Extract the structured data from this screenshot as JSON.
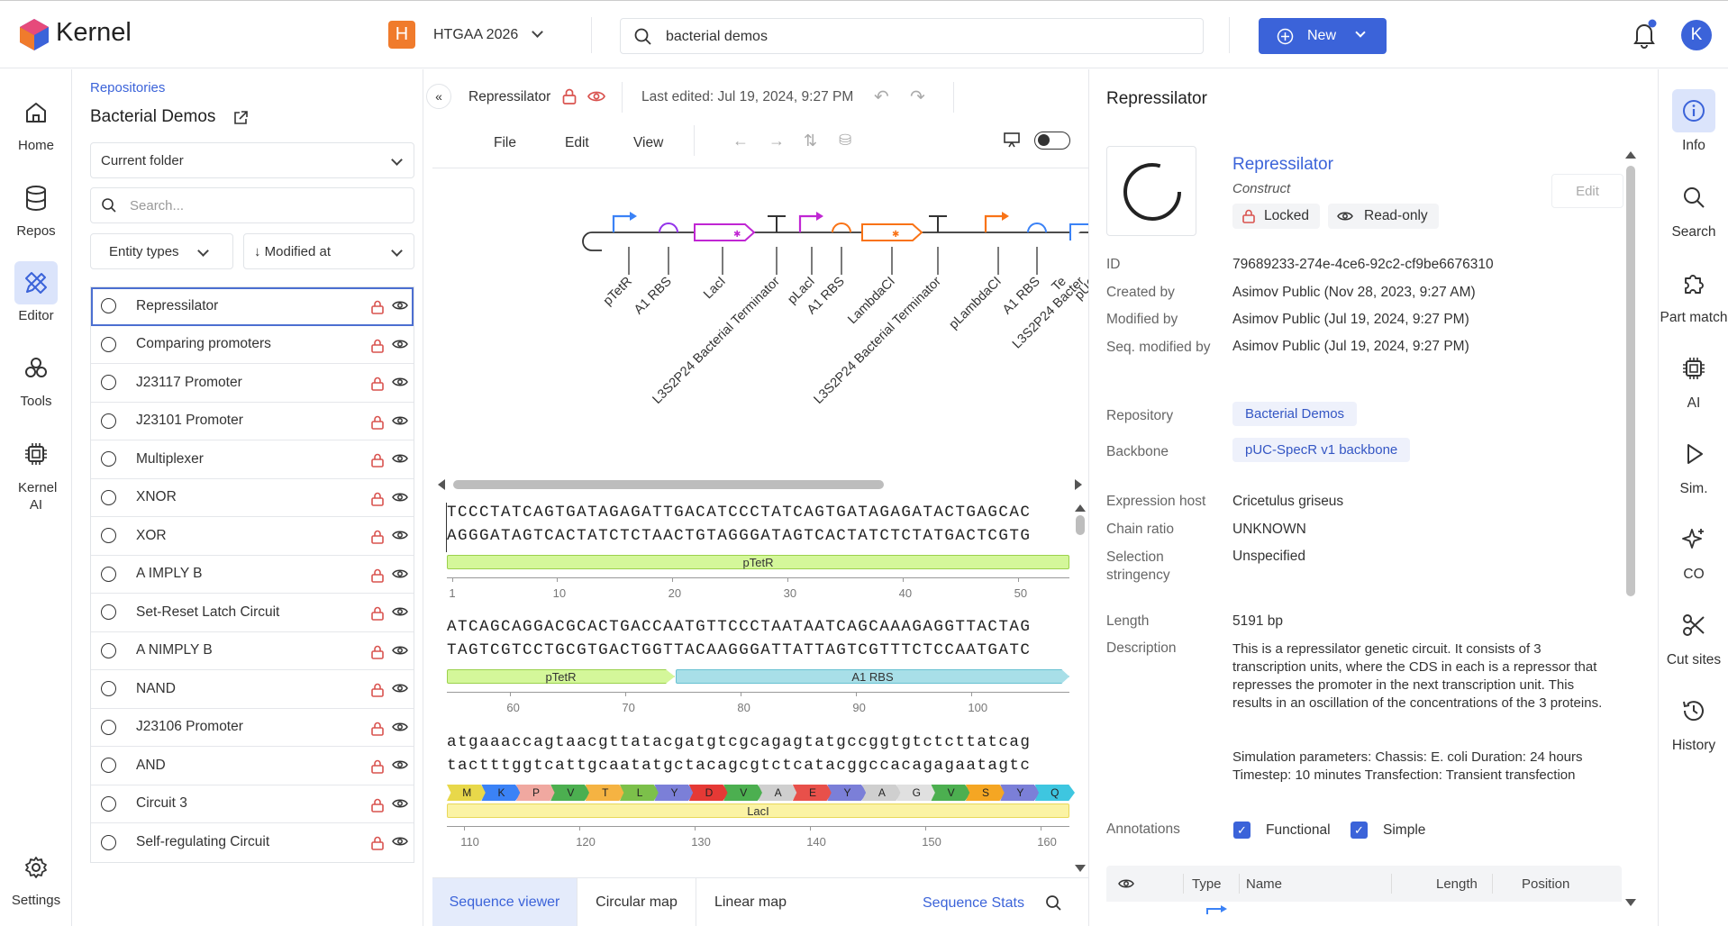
{
  "app": {
    "name": "Kernel"
  },
  "workspace": {
    "initial": "H",
    "name": "HTGAA 2026"
  },
  "search": {
    "value": "bacterial demos"
  },
  "new_button": {
    "label": "New"
  },
  "user": {
    "initial": "K"
  },
  "left_nav": [
    {
      "label": "Home"
    },
    {
      "label": "Repos"
    },
    {
      "label": "Editor"
    },
    {
      "label": "Tools"
    },
    {
      "label": "Kernel AI"
    }
  ],
  "settings_label": "Settings",
  "files": {
    "breadcrumb": "Repositories",
    "title": "Bacterial Demos",
    "folder_select": "Current folder",
    "search_placeholder": "Search...",
    "filter_entity": "Entity types",
    "sort": "↓ Modified at",
    "items": [
      {
        "name": "Repressilator"
      },
      {
        "name": "Comparing promoters"
      },
      {
        "name": "J23117 Promoter"
      },
      {
        "name": "J23101 Promoter"
      },
      {
        "name": "Multiplexer"
      },
      {
        "name": "XNOR"
      },
      {
        "name": "XOR"
      },
      {
        "name": "A IMPLY B"
      },
      {
        "name": "Set-Reset Latch Circuit"
      },
      {
        "name": "A NIMPLY B"
      },
      {
        "name": "NAND"
      },
      {
        "name": "J23106 Promoter"
      },
      {
        "name": "AND"
      },
      {
        "name": "Circuit 3"
      },
      {
        "name": "Self-regulating Circuit"
      }
    ]
  },
  "editor": {
    "doc_title": "Repressilator",
    "last_edited": "Last edited: Jul 19, 2024, 9:27 PM",
    "menus": [
      "File",
      "Edit",
      "View"
    ],
    "feature_labels": [
      "pTetR",
      "A1 RBS",
      "LacI",
      "L3S2P24 Bacterial Terminator",
      "pLacI",
      "A1 RBS",
      "LambdaCI",
      "L3S2P24 Bacterial Terminator",
      "pLambdaCI",
      "A1 RBS",
      "Te",
      "L3S2P24 Bacter",
      "pUC"
    ],
    "seq_blocks": [
      {
        "top": "TCCCTATCAGTGATAGAGATTGACATCCCTATCAGTGATAGAGATACTGAGCAC",
        "bottom": "AGGGATAGTCACTATCTCTAACTGTAGGGATAGTCACTATCTCTATGACTCGTG",
        "ticks": [
          "1",
          "10",
          "20",
          "30",
          "40",
          "50"
        ]
      },
      {
        "top": "ATCAGCAGGACGCACTGACCAATGTTCCCTAATAATCAGCAAAGAGGTTACTAG",
        "bottom": "TAGTCGTCCTGCGTGACTGGTTACAAGGGATTATTAGTCGTTTCTCCAATGATC",
        "ticks": [
          "60",
          "70",
          "80",
          "90",
          "100"
        ]
      },
      {
        "top": "atgaaaccagtaacgttatacgatgtcgcagagtatgccggtgtctcttatcag",
        "bottom": "tactttggtcattgcaatatgctacagcgtctcatacggccacagagaatagtc",
        "ticks": [
          "110",
          "120",
          "130",
          "140",
          "150",
          "160"
        ]
      }
    ],
    "annotations": {
      "a1": "pTetR",
      "a2a": "pTetR",
      "a2b": "A1 RBS",
      "a3": "LacI"
    },
    "amino_acids": [
      "M",
      "K",
      "P",
      "V",
      "T",
      "L",
      "Y",
      "D",
      "V",
      "A",
      "E",
      "Y",
      "A",
      "G",
      "V",
      "S",
      "Y",
      "Q"
    ],
    "tabs": [
      "Sequence viewer",
      "Circular map",
      "Linear map"
    ],
    "stats_link": "Sequence Stats"
  },
  "info": {
    "title": "Repressilator",
    "name": "Repressilator",
    "type": "Construct",
    "locked": "Locked",
    "readonly": "Read-only",
    "edit": "Edit",
    "fields": {
      "id_label": "ID",
      "id": "79689233-274e-4ce6-92c2-cf9be6676310",
      "created_label": "Created by",
      "created": "Asimov Public (Nov 28, 2023, 9:27 AM)",
      "modified_label": "Modified by",
      "modified": "Asimov Public (Jul 19, 2024, 9:27 PM)",
      "seqmod_label": "Seq. modified by",
      "seqmod": "Asimov Public (Jul 19, 2024, 9:27 PM)",
      "repo_label": "Repository",
      "repo": "Bacterial Demos",
      "backbone_label": "Backbone",
      "backbone": "pUC-SpecR v1 backbone",
      "host_label": "Expression host",
      "host": "Cricetulus griseus",
      "chain_label": "Chain ratio",
      "chain": "UNKNOWN",
      "selection_label": "Selection stringency",
      "selection": "Unspecified",
      "length_label": "Length",
      "length": "5191 bp",
      "desc_label": "Description",
      "desc": "This is a repressilator genetic circuit. It consists of 3 transcription units, where the CDS in each is a repressor that represses the promoter in the next transcription unit. This results in an oscillation of the concentrations of the 3 proteins.",
      "sim": "Simulation parameters: Chassis: E. coli Duration: 24 hours Timestep: 10 minutes Transfection: Transient transfection",
      "ann_label": "Annotations",
      "functional": "Functional",
      "simple": "Simple"
    },
    "table_headers": [
      "Type",
      "Name",
      "Length",
      "Position"
    ]
  },
  "right_nav": [
    {
      "label": "Info"
    },
    {
      "label": "Search"
    },
    {
      "label": "Part match"
    },
    {
      "label": "AI"
    },
    {
      "label": "Sim."
    },
    {
      "label": "CO"
    },
    {
      "label": "Cut sites"
    },
    {
      "label": "History"
    }
  ],
  "colors": {
    "accent": "#3b63d9",
    "lock": "#d9534f",
    "workspace": "#f07b2c"
  }
}
